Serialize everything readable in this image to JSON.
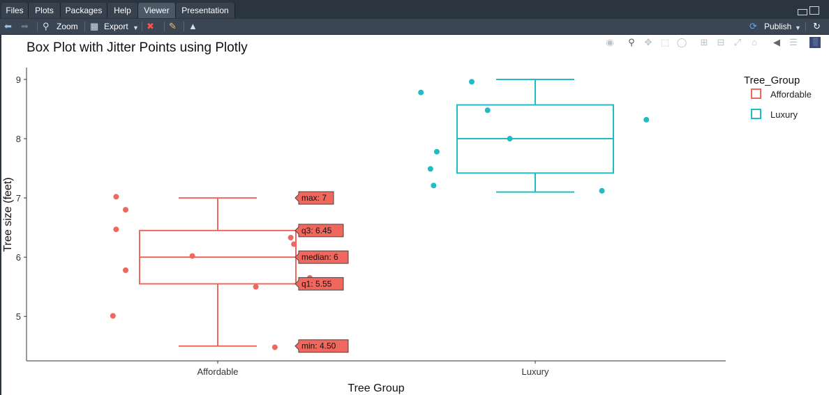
{
  "tabs": [
    {
      "label": "Files",
      "active": false
    },
    {
      "label": "Plots",
      "active": false
    },
    {
      "label": "Packages",
      "active": false
    },
    {
      "label": "Help",
      "active": false
    },
    {
      "label": "Viewer",
      "active": true
    },
    {
      "label": "Presentation",
      "active": false
    }
  ],
  "toolbar": {
    "zoom_label": "Zoom",
    "export_label": "Export",
    "publish_label": "Publish"
  },
  "modebar_icons": [
    "camera-icon",
    "zoom-icon",
    "pan-icon",
    "box-select-icon",
    "lasso-icon",
    "zoom-in-icon",
    "zoom-out-icon",
    "autoscale-icon",
    "home-icon",
    "spike-lines-icon",
    "compare-icon",
    "plotly-logo-icon"
  ],
  "chart_data": {
    "type": "box",
    "title": "Box Plot with Jitter Points using Plotly",
    "xlabel": "Tree Group",
    "ylabel": "Tree size (feet)",
    "categories": [
      "Affordable",
      "Luxury"
    ],
    "ylim": [
      4.25,
      9.2
    ],
    "yticks": [
      5,
      6,
      7,
      8,
      9
    ],
    "legend": {
      "title": "Tree_Group",
      "placement": "top-right"
    },
    "series": [
      {
        "name": "Affordable",
        "color": "#f0675e",
        "box": {
          "min": 4.5,
          "q1": 5.55,
          "median": 6,
          "q3": 6.45,
          "max": 7
        },
        "points": [
          {
            "x": -0.32,
            "y": 7.02
          },
          {
            "x": -0.29,
            "y": 6.8
          },
          {
            "x": -0.32,
            "y": 6.47
          },
          {
            "x": -0.29,
            "y": 5.78
          },
          {
            "x": -0.33,
            "y": 5.01
          },
          {
            "x": -0.08,
            "y": 6.02
          },
          {
            "x": 0.12,
            "y": 5.5
          },
          {
            "x": 0.23,
            "y": 6.33
          },
          {
            "x": 0.24,
            "y": 6.22
          },
          {
            "x": 0.29,
            "y": 5.65
          },
          {
            "x": 0.18,
            "y": 4.48
          }
        ],
        "hover_labels": [
          "max: 7",
          "q3: 6.45",
          "median: 6",
          "q1: 5.55",
          "min: 4.50"
        ]
      },
      {
        "name": "Luxury",
        "color": "#1fbcc5",
        "box": {
          "min": 7.1,
          "q1": 7.42,
          "median": 8,
          "q3": 8.57,
          "max": 9
        },
        "points": [
          {
            "x": -0.36,
            "y": 8.78
          },
          {
            "x": -0.2,
            "y": 8.96
          },
          {
            "x": -0.15,
            "y": 8.48
          },
          {
            "x": -0.31,
            "y": 7.78
          },
          {
            "x": -0.33,
            "y": 7.49
          },
          {
            "x": -0.32,
            "y": 7.21
          },
          {
            "x": -0.08,
            "y": 8.0
          },
          {
            "x": 0.21,
            "y": 7.12
          },
          {
            "x": 0.35,
            "y": 8.32
          }
        ]
      }
    ]
  }
}
